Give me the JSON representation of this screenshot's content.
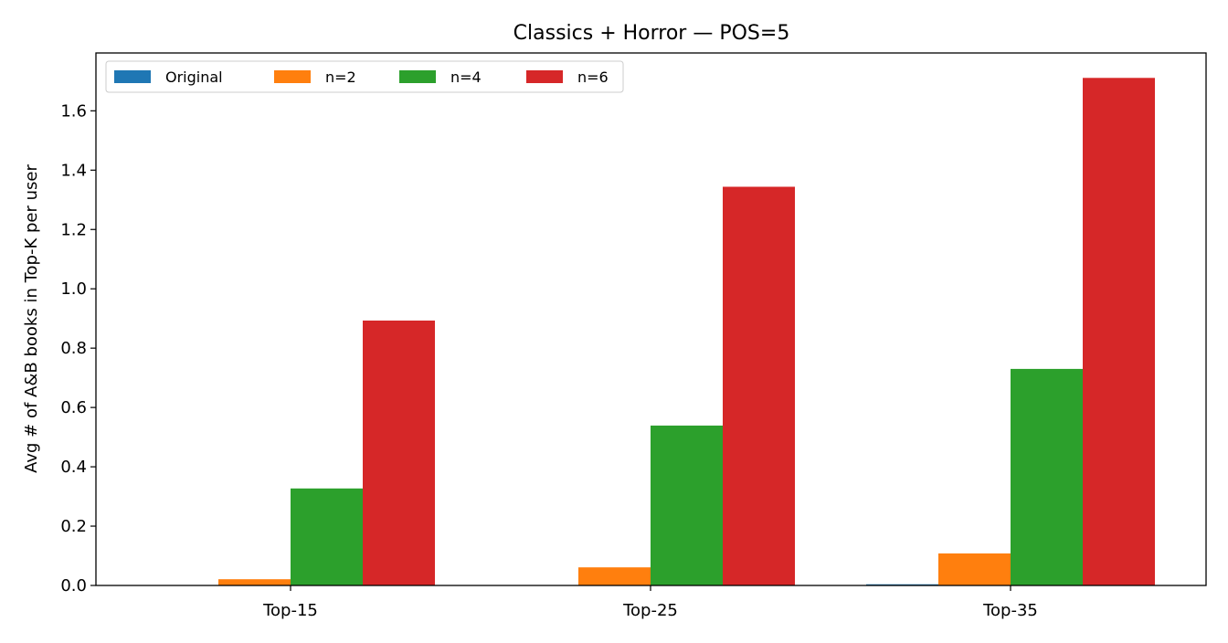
{
  "chart_data": {
    "type": "bar",
    "title": "Classics + Horror — POS=5",
    "xlabel": "",
    "ylabel": "Avg # of A&B books in Top-K per user",
    "categories": [
      "Top-15",
      "Top-25",
      "Top-35"
    ],
    "series": [
      {
        "name": "Original",
        "color": "#1f77b4",
        "values": [
          0.0,
          0.0,
          0.004
        ]
      },
      {
        "name": "n=2",
        "color": "#ff7f0e",
        "values": [
          0.021,
          0.061,
          0.108
        ]
      },
      {
        "name": "n=4",
        "color": "#2ca02c",
        "values": [
          0.327,
          0.539,
          0.73
        ]
      },
      {
        "name": "n=6",
        "color": "#d62728",
        "values": [
          0.893,
          1.344,
          1.711
        ]
      }
    ],
    "ylim": [
      0,
      1.795
    ],
    "yticks": [
      "0.0",
      "0.2",
      "0.4",
      "0.6",
      "0.8",
      "1.0",
      "1.2",
      "1.4",
      "1.6"
    ],
    "legend_position": "upper-left",
    "grid": false
  }
}
